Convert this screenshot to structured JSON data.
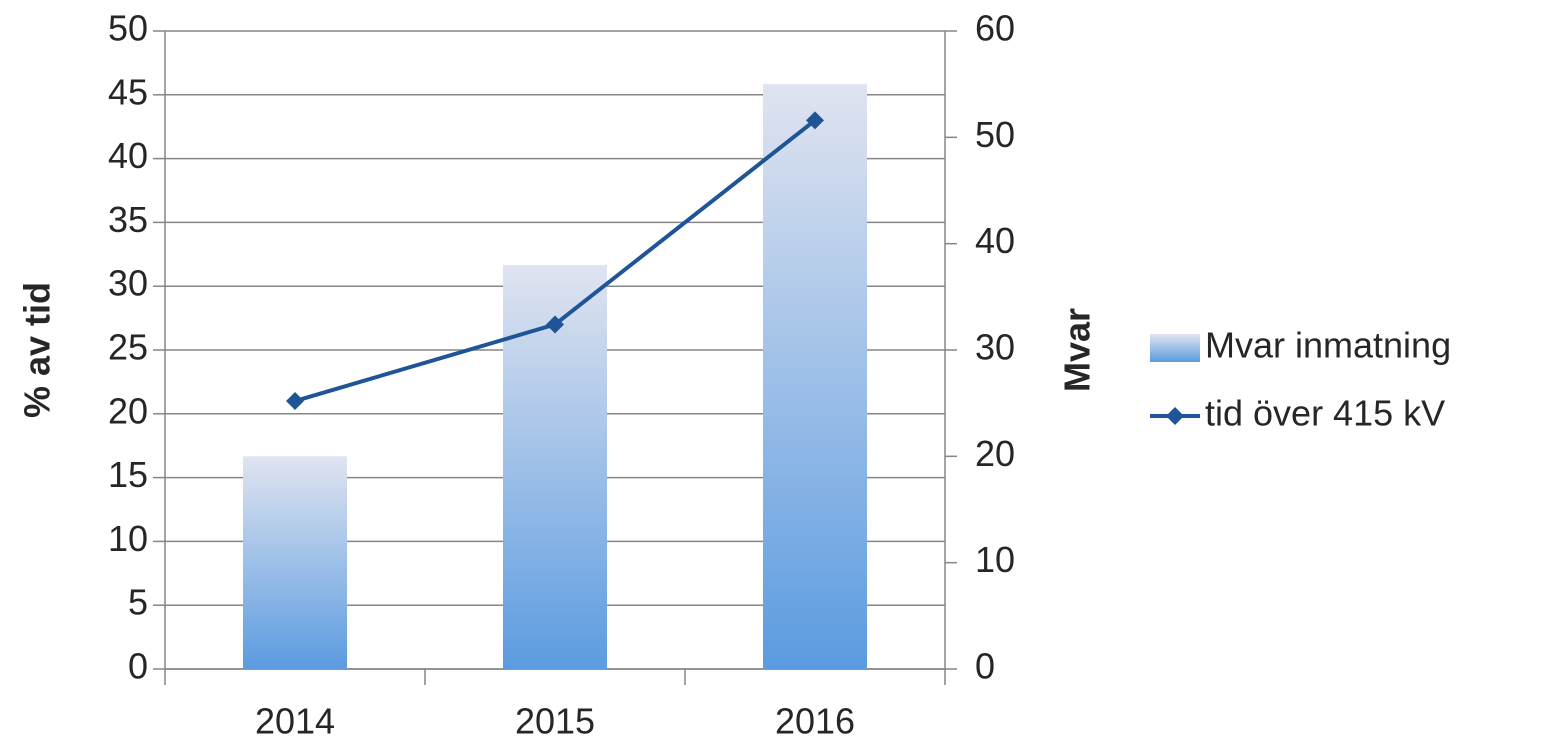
{
  "chart_data": {
    "type": "bar+line",
    "categories": [
      "2014",
      "2015",
      "2016"
    ],
    "ylabel": "% av tid",
    "y2label": "Mvar",
    "ylim": [
      0,
      50
    ],
    "yticks": [
      0,
      5,
      10,
      15,
      20,
      25,
      30,
      35,
      40,
      45,
      50
    ],
    "y2lim": [
      0,
      60
    ],
    "y2ticks": [
      0,
      10,
      20,
      30,
      40,
      50,
      60
    ],
    "grid": true,
    "legend": "right",
    "series": [
      {
        "name": "Mvar inmatning",
        "type": "bar",
        "axis": "y2",
        "color": "#5b9be0",
        "values": [
          20,
          38,
          55
        ]
      },
      {
        "name": "tid över 415 kV",
        "type": "line",
        "axis": "y",
        "color": "#1f5597",
        "values": [
          21,
          27,
          43
        ]
      }
    ]
  }
}
